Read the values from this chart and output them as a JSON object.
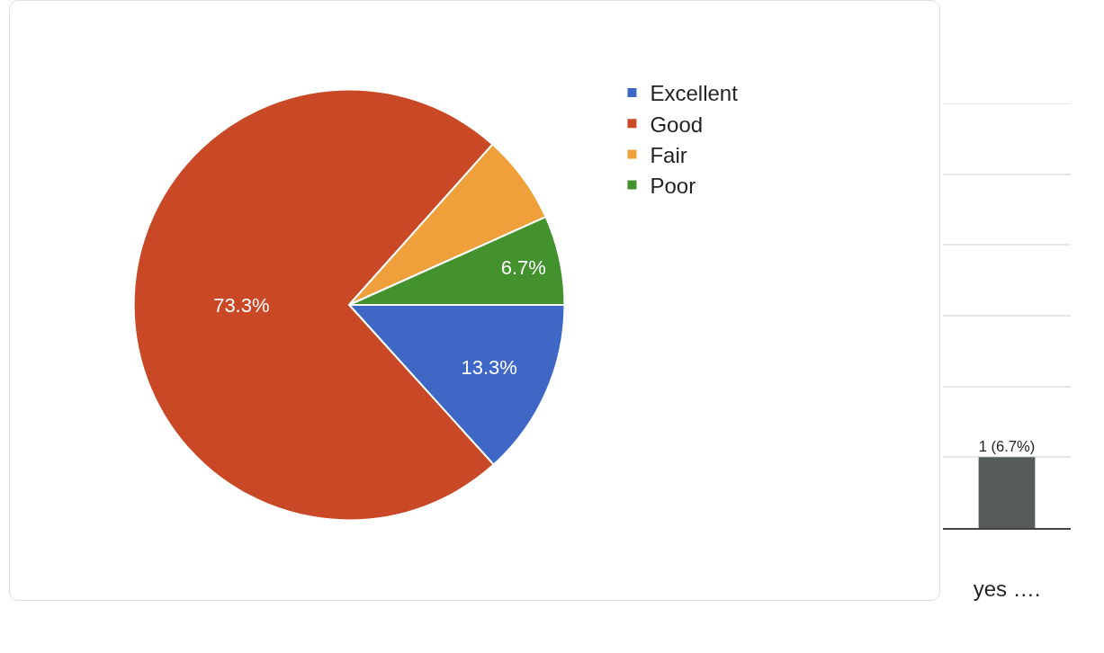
{
  "chart_data": [
    {
      "type": "pie",
      "categories": [
        "Excellent",
        "Good",
        "Fair",
        "Poor"
      ],
      "values": [
        13.3,
        73.3,
        6.7,
        6.7
      ],
      "colors": [
        "#3f67c6",
        "#c94826",
        "#f0a03a",
        "#43922e"
      ],
      "value_labels": [
        "13.3%",
        "73.3%",
        null,
        "6.7%"
      ],
      "legend": "top right"
    },
    {
      "type": "bar",
      "categories": [
        "yes …."
      ],
      "values": [
        1
      ],
      "color": "#555c57",
      "value_labels": [
        "1 (6.7%)"
      ],
      "ylim": [
        0,
        6
      ],
      "yticks": [
        {
          "value": 0,
          "label": null
        },
        {
          "value": 1,
          "label": null
        },
        {
          "value": 2,
          "label": null
        },
        {
          "value": 3,
          "label": null
        },
        {
          "value": 4,
          "label": null
        },
        {
          "value": 5,
          "label": null
        },
        {
          "value": 6,
          "label": null
        }
      ],
      "grid": "y",
      "tick_labels": "x"
    }
  ]
}
